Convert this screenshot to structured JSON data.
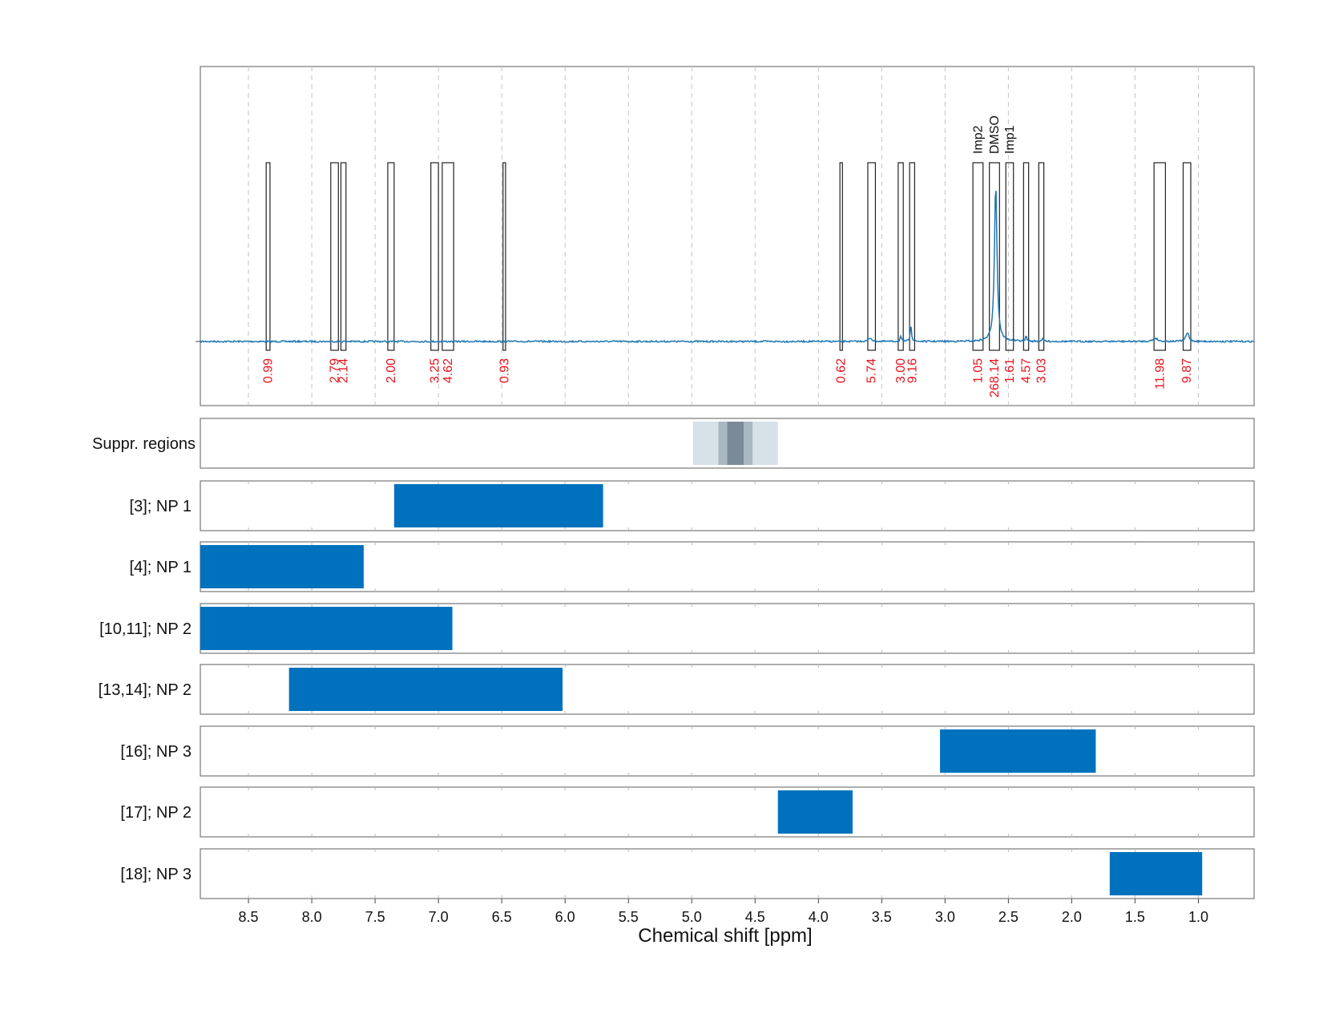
{
  "chart_data": {
    "type": "nmr-spectrum",
    "xlabel": "Chemical shift [ppm]",
    "x_range": [
      8.88,
      0.56
    ],
    "x_ticks": [
      "8.5",
      "8.0",
      "7.5",
      "7.0",
      "6.5",
      "6.0",
      "5.5",
      "5.0",
      "4.5",
      "4.0",
      "3.5",
      "3.0",
      "2.5",
      "2.0",
      "1.5",
      "1.0"
    ],
    "spectrum": {
      "baseline": 0,
      "peaks": [
        {
          "ppm": 2.6,
          "height": 0.93,
          "width": 0.012
        },
        {
          "ppm": 3.27,
          "height": 0.1,
          "width": 0.006
        },
        {
          "ppm": 3.35,
          "height": 0.03,
          "width": 0.006
        },
        {
          "ppm": 3.59,
          "height": 0.02,
          "width": 0.015
        },
        {
          "ppm": 2.36,
          "height": 0.03,
          "width": 0.006
        },
        {
          "ppm": 2.23,
          "height": 0.02,
          "width": 0.006
        },
        {
          "ppm": 1.34,
          "height": 0.02,
          "width": 0.02
        },
        {
          "ppm": 1.09,
          "height": 0.04,
          "width": 0.015
        },
        {
          "ppm": 1.08,
          "height": 0.02,
          "width": 0.006
        }
      ]
    },
    "integrals": [
      {
        "from": 8.36,
        "to": 8.33,
        "value": "0.99"
      },
      {
        "from": 7.85,
        "to": 7.79,
        "value": "2.79"
      },
      {
        "from": 7.77,
        "to": 7.73,
        "value": "2.14"
      },
      {
        "from": 7.4,
        "to": 7.35,
        "value": "2.00"
      },
      {
        "from": 7.06,
        "to": 7.0,
        "value": "3.25"
      },
      {
        "from": 6.97,
        "to": 6.88,
        "value": "4.62"
      },
      {
        "from": 6.49,
        "to": 6.47,
        "value": "0.93"
      },
      {
        "from": 3.83,
        "to": 3.81,
        "value": "0.62"
      },
      {
        "from": 3.61,
        "to": 3.55,
        "value": "5.74"
      },
      {
        "from": 3.37,
        "to": 3.33,
        "value": "3.00"
      },
      {
        "from": 3.28,
        "to": 3.24,
        "value": "9.16"
      },
      {
        "from": 2.78,
        "to": 2.7,
        "value": "1.05",
        "annotation": "Imp2"
      },
      {
        "from": 2.65,
        "to": 2.57,
        "value": "268.14",
        "annotation": "DMSO"
      },
      {
        "from": 2.52,
        "to": 2.46,
        "value": "1.61",
        "annotation": "Imp1"
      },
      {
        "from": 2.38,
        "to": 2.34,
        "value": "4.57"
      },
      {
        "from": 2.26,
        "to": 2.22,
        "value": "3.03"
      },
      {
        "from": 1.35,
        "to": 1.26,
        "value": "11.98"
      },
      {
        "from": 1.12,
        "to": 1.06,
        "value": "9.87"
      }
    ],
    "suppressed_regions": {
      "label": "Suppr. regions",
      "bands": [
        {
          "from": 4.99,
          "to": 4.32,
          "level": 1
        },
        {
          "from": 4.79,
          "to": 4.52,
          "level": 2
        },
        {
          "from": 4.72,
          "to": 4.59,
          "level": 3
        }
      ]
    },
    "range_rows": [
      {
        "label": "[3]; NP 1",
        "from": 7.35,
        "to": 5.7
      },
      {
        "label": "[4]; NP 1",
        "from": 8.88,
        "to": 7.59
      },
      {
        "label": "[10,11]; NP 2",
        "from": 8.88,
        "to": 6.89
      },
      {
        "label": "[13,14]; NP 2",
        "from": 8.18,
        "to": 6.02
      },
      {
        "label": "[16]; NP 3",
        "from": 3.04,
        "to": 1.81
      },
      {
        "label": "[17]; NP 2",
        "from": 4.32,
        "to": 3.73
      },
      {
        "label": "[18]; NP 3",
        "from": 1.7,
        "to": 0.97
      }
    ],
    "colors": {
      "spectrum": "#1f77b4",
      "bar": "#0072bd",
      "integral_label": "#e8141c",
      "suppr_light": "#d7e1e8",
      "suppr_mid": "#aab8c3",
      "suppr_dark": "#7a8a99"
    }
  }
}
